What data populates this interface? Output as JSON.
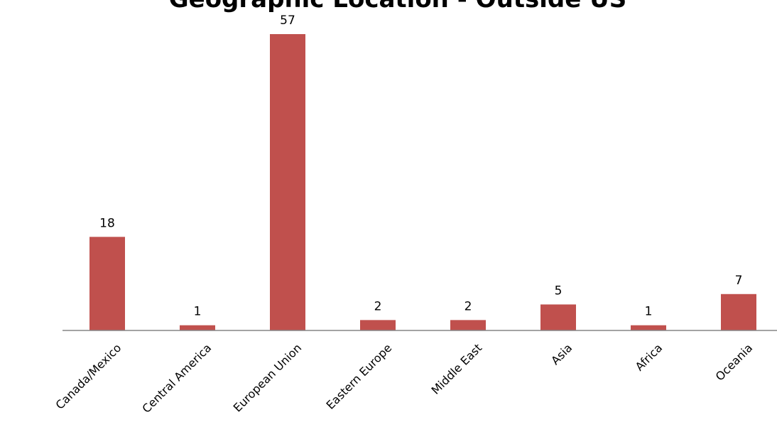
{
  "chart_data": {
    "type": "bar",
    "title": "Geographic Location - Outside US",
    "xlabel": "",
    "ylabel": "",
    "categories": [
      "Canada/Mexico",
      "Central America",
      "European Union",
      "Eastern Europe",
      "Middle East",
      "Asia",
      "Africa",
      "Oceania"
    ],
    "values": [
      18,
      1,
      57,
      2,
      2,
      5,
      1,
      7
    ],
    "ylim": [
      0,
      57
    ],
    "grid": false,
    "legend": "none",
    "bar_color": "#c0504d",
    "axis_color": "#868686"
  }
}
